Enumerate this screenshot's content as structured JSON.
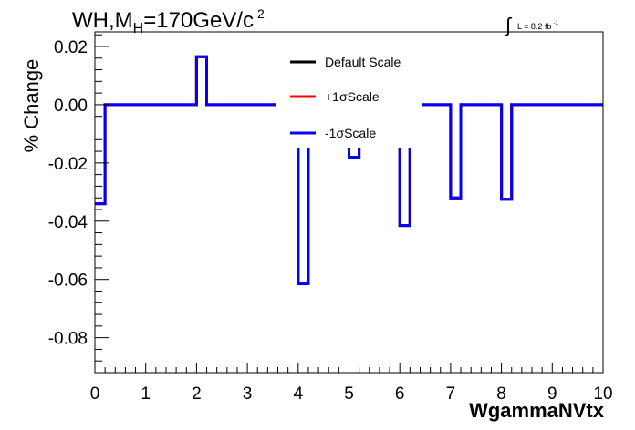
{
  "chart_data": {
    "type": "line",
    "title": {
      "prefix": "WH,M",
      "subscript": "H",
      "suffix": "=170GeV/c",
      "superscript": "2"
    },
    "lumi": {
      "integral": "∫",
      "text": "L = 8.2 fb",
      "superscript": "-1"
    },
    "xlabel": "WgammaNVtx",
    "ylabel": "% Change",
    "xlim": [
      0,
      10
    ],
    "ylim": [
      -0.092,
      0.025
    ],
    "x_ticks": [
      "0",
      "1",
      "2",
      "3",
      "4",
      "5",
      "6",
      "7",
      "8",
      "9",
      "10"
    ],
    "y_ticks": [
      "0.02",
      "0.00",
      "-0.02",
      "-0.04",
      "-0.06",
      "-0.08"
    ],
    "y_tick_values": [
      0.02,
      0.0,
      -0.02,
      -0.04,
      -0.06,
      -0.08
    ],
    "bin_edges": [
      0,
      0.2,
      2.0,
      2.2,
      4.0,
      4.2,
      5.0,
      5.2,
      6.0,
      6.2,
      7.0,
      7.2,
      8.0,
      8.2,
      10.0
    ],
    "series": [
      {
        "name": "Default Scale",
        "color": "#000000",
        "values": [
          -0.034,
          0.0,
          0.0165,
          0.0,
          -0.0615,
          0.0,
          -0.018,
          0.0,
          -0.0415,
          0.0,
          -0.032,
          0.0,
          -0.0325,
          0.0
        ]
      },
      {
        "name": "+1σScale",
        "color": "#ff0000",
        "values": [
          -0.034,
          0.0,
          0.0165,
          0.0,
          -0.0615,
          0.0,
          -0.018,
          0.0,
          -0.0415,
          0.0,
          -0.032,
          0.0,
          -0.0325,
          0.0
        ]
      },
      {
        "name": "-1σScale",
        "color": "#0000ff",
        "values": [
          -0.034,
          0.0,
          0.0165,
          0.0,
          -0.0615,
          0.0,
          -0.018,
          0.0,
          -0.0415,
          0.0,
          -0.032,
          0.0,
          -0.0325,
          0.0
        ]
      }
    ],
    "legend_position": "top-center",
    "grid": false
  }
}
